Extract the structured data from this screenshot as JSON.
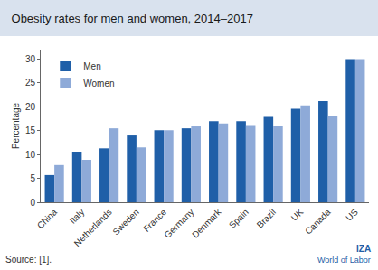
{
  "chart_data": {
    "type": "bar",
    "title": "Obesity rates for men and women, 2014–2017",
    "y_label": "Percentage",
    "categories": [
      "China",
      "Italy",
      "Netherlands",
      "Sweden",
      "France",
      "Germany",
      "Denmark",
      "Spain",
      "Brazil",
      "UK",
      "Canada",
      "US"
    ],
    "series": [
      {
        "name": "Men",
        "color": "#1f5fa8",
        "values": [
          5.7,
          10.6,
          11.3,
          14.0,
          15.1,
          15.5,
          17.0,
          17.0,
          17.9,
          19.6,
          21.2,
          30.0
        ]
      },
      {
        "name": "Women",
        "color": "#8eaad8",
        "values": [
          7.8,
          8.9,
          15.5,
          11.5,
          15.1,
          15.9,
          16.5,
          16.2,
          16.0,
          20.3,
          18.0,
          30.0
        ]
      }
    ],
    "ylim": [
      0,
      32
    ],
    "yticks": [
      0,
      5,
      10,
      15,
      20,
      25,
      30
    ],
    "grid": false,
    "legend": "top-left",
    "source": "Source: [1].",
    "annotations": [
      "IZA",
      "World of Labor"
    ]
  }
}
